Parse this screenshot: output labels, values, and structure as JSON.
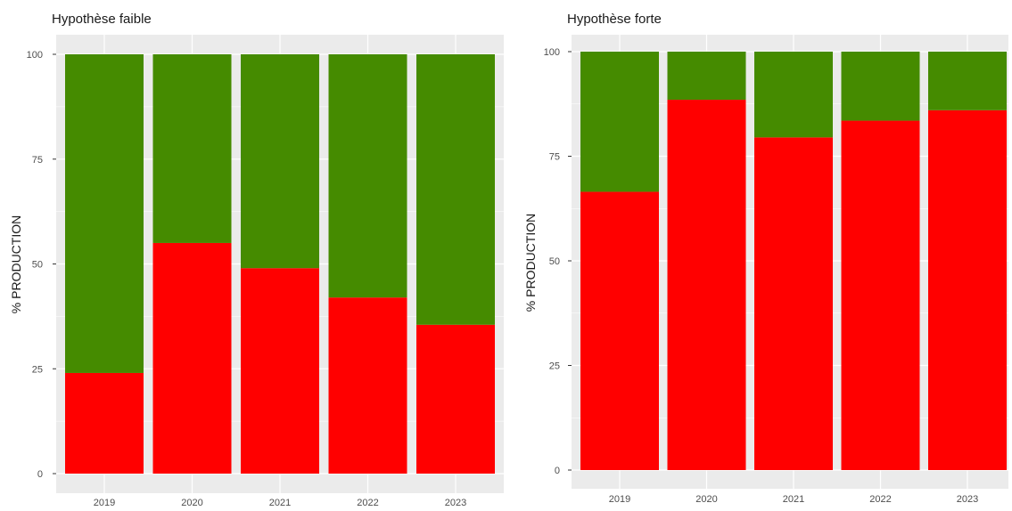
{
  "chart_data": [
    {
      "type": "bar",
      "stacked": true,
      "title": "Hypothèse faible",
      "xlabel": "",
      "ylabel": "% PRODUCTION",
      "categories": [
        "2019",
        "2020",
        "2021",
        "2022",
        "2023"
      ],
      "ylim": [
        0,
        100
      ],
      "yticks": [
        0,
        25,
        50,
        75,
        100
      ],
      "grid": true,
      "series": [
        {
          "values": [
            24,
            55,
            49,
            42,
            35.5
          ],
          "color": "#ff0000"
        },
        {
          "values": [
            76,
            45,
            51,
            58,
            64.5
          ],
          "color": "#458b00"
        }
      ]
    },
    {
      "type": "bar",
      "stacked": true,
      "title": "Hypothèse forte",
      "xlabel": "",
      "ylabel": "% PRODUCTION",
      "categories": [
        "2019",
        "2020",
        "2021",
        "2022",
        "2023"
      ],
      "ylim": [
        0,
        100
      ],
      "yticks": [
        0,
        25,
        50,
        75,
        100
      ],
      "grid": true,
      "series": [
        {
          "values": [
            66.5,
            88.5,
            79.5,
            83.5,
            86
          ],
          "color": "#ff0000"
        },
        {
          "values": [
            33.5,
            11.5,
            20.5,
            16.5,
            14
          ],
          "color": "#458b00"
        }
      ]
    }
  ],
  "colors": {
    "panel_background": "#ebebeb",
    "grid": "#ffffff"
  }
}
